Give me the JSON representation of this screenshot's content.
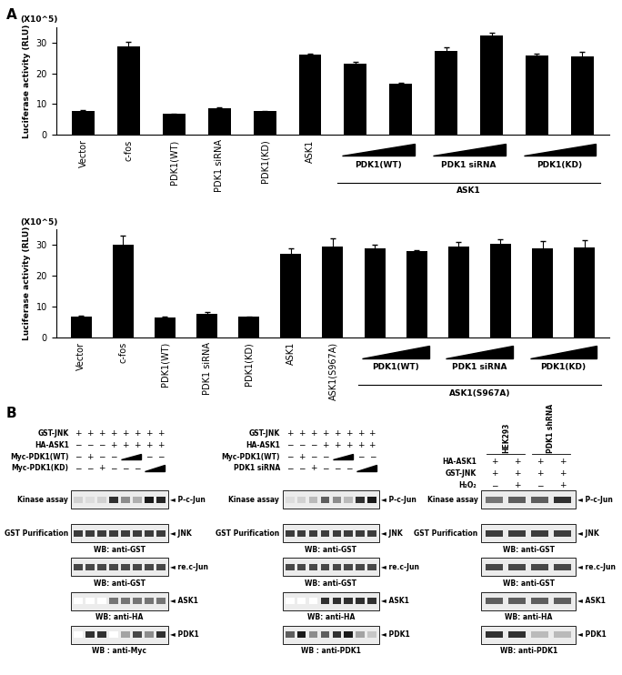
{
  "panel_labels": [
    "A",
    "B"
  ],
  "chart_data": [
    {
      "type": "bar",
      "y_multiplier_label": "(X10^5)",
      "ylabel": "Luciferase activity (RLU)",
      "categories": [
        "Vector",
        "c-fos",
        "PDK1(WT)",
        "PDK1 siRNA",
        "PDK1(KD)",
        "ASK1",
        null,
        null,
        null,
        null,
        null,
        null
      ],
      "values": [
        7.8,
        28.7,
        6.8,
        8.7,
        7.7,
        26.1,
        23.1,
        16.6,
        27.3,
        32.2,
        25.8,
        25.4
      ],
      "errors": [
        0.2,
        1.5,
        0.2,
        0.3,
        0.1,
        0.3,
        0.7,
        0.4,
        1.1,
        1.0,
        0.5,
        1.4
      ],
      "groups": [
        {
          "label": "PDK1(WT)",
          "size": 2
        },
        {
          "label": "PDK1 siRNA",
          "size": 2
        },
        {
          "label": "PDK1(KD)",
          "size": 2
        }
      ],
      "group_label": "ASK1",
      "color": "#000000",
      "ylim": [
        0,
        35
      ],
      "yticks": [
        0,
        10,
        20,
        30
      ]
    },
    {
      "type": "bar",
      "y_multiplier_label": "(X10^5)",
      "ylabel": "Luciferase activity (RLU)",
      "categories": [
        "Vector",
        "c-fos",
        "PDK1(WT)",
        "PDK1 siRNA",
        "PDK1(KD)",
        "ASK1",
        "ASK1(S967A)",
        null,
        null,
        null,
        null,
        null,
        null
      ],
      "values": [
        6.8,
        30.2,
        6.5,
        7.8,
        6.7,
        27.0,
        29.4,
        28.8,
        27.9,
        29.4,
        30.3,
        28.9,
        29.2
      ],
      "errors": [
        0.2,
        2.8,
        0.3,
        0.6,
        0.1,
        1.8,
        2.8,
        1.3,
        0.5,
        1.5,
        1.4,
        2.3,
        2.2
      ],
      "groups": [
        {
          "label": "PDK1(WT)",
          "size": 2
        },
        {
          "label": "PDK1 siRNA",
          "size": 2
        },
        {
          "label": "PDK1(KD)",
          "size": 2
        }
      ],
      "group_label": "ASK1(S967A)",
      "color": "#000000",
      "ylim": [
        0,
        35
      ],
      "yticks": [
        0,
        10,
        20,
        30
      ]
    }
  ],
  "blots": [
    {
      "rows": [
        {
          "label": "GST-JNK",
          "signs": [
            "+",
            "+",
            "+",
            "+",
            "+",
            "+",
            "+",
            "+"
          ]
        },
        {
          "label": "HA-ASK1",
          "signs": [
            "−",
            "−",
            "−",
            "+",
            "+",
            "+",
            "+",
            "+"
          ]
        },
        {
          "label": "Myc-PDK1(WT)",
          "signs": [
            "−",
            "+",
            "−",
            "−",
            null,
            null,
            "−",
            "−"
          ]
        },
        {
          "label": "Myc-PDK1(KD)",
          "signs": [
            "−",
            "−",
            "+",
            "−",
            "−",
            "−",
            null,
            null
          ]
        }
      ],
      "panels": [
        {
          "left_label": "Kinase assay",
          "right_label": "◄ P-c-Jun",
          "intensities": [
            0.2,
            0.15,
            0.2,
            0.9,
            0.5,
            0.35,
            1.0,
            0.95
          ]
        },
        {
          "left_label": "GST Purification",
          "right_label": "◄ JNK",
          "wb_label": "WB: anti-GST",
          "intensities": [
            0.85,
            0.85,
            0.85,
            0.85,
            0.85,
            0.85,
            0.85,
            0.85
          ]
        },
        {
          "right_label": "◄ re.c-Jun",
          "wb_label": "WB: anti-GST",
          "intensities": [
            0.8,
            0.8,
            0.8,
            0.8,
            0.8,
            0.8,
            0.8,
            0.8
          ]
        },
        {
          "right_label": "◄ ASK1",
          "wb_label": "WB: anti-HA",
          "intensities": [
            0,
            0,
            0,
            0.6,
            0.6,
            0.6,
            0.6,
            0.6
          ]
        },
        {
          "right_label": "◄ PDK1",
          "wb_label": "WB : anti-Myc",
          "intensities": [
            0,
            0.9,
            0.9,
            0,
            0.4,
            0.8,
            0.5,
            0.9
          ]
        }
      ]
    },
    {
      "rows": [
        {
          "label": "GST-JNK",
          "signs": [
            "+",
            "+",
            "+",
            "+",
            "+",
            "+",
            "+",
            "+"
          ]
        },
        {
          "label": "HA-ASK1",
          "signs": [
            "−",
            "−",
            "−",
            "+",
            "+",
            "+",
            "+",
            "+"
          ]
        },
        {
          "label": "Myc-PDK1(WT)",
          "signs": [
            "−",
            "+",
            "−",
            "−",
            null,
            null,
            "−",
            "−"
          ]
        },
        {
          "label": "PDK1 siRNA",
          "signs": [
            "−",
            "−",
            "+",
            "−",
            "−",
            "−",
            null,
            null
          ]
        }
      ],
      "panels": [
        {
          "left_label": "Kinase assay",
          "right_label": "◄ P-c-Jun",
          "intensities": [
            0.15,
            0.2,
            0.3,
            0.7,
            0.5,
            0.3,
            0.9,
            1.0
          ]
        },
        {
          "left_label": "GST Purification",
          "right_label": "◄ JNK",
          "wb_label": "WB: anti-GST",
          "intensities": [
            0.85,
            0.85,
            0.85,
            0.85,
            0.85,
            0.85,
            0.85,
            0.85
          ]
        },
        {
          "right_label": "◄ re.c-Jun",
          "wb_label": "WB: anti-GST",
          "intensities": [
            0.8,
            0.8,
            0.8,
            0.8,
            0.8,
            0.8,
            0.8,
            0.8
          ]
        },
        {
          "right_label": "◄ ASK1",
          "wb_label": "WB: anti-HA",
          "intensities": [
            0,
            0,
            0,
            0.9,
            0.9,
            0.9,
            0.9,
            0.9
          ]
        },
        {
          "right_label": "◄ PDK1",
          "wb_label": "WB : anti-PDK1",
          "intensities": [
            0.7,
            1.0,
            0.5,
            0.7,
            0.9,
            1.0,
            0.4,
            0.25
          ]
        }
      ]
    },
    {
      "column_headers": [
        {
          "label": "HEK293",
          "size": 2
        },
        {
          "label": "PDK1 shRNA",
          "size": 2
        }
      ],
      "rows": [
        {
          "label": "HA-ASK1",
          "signs": [
            "+",
            "+",
            "+",
            "+"
          ]
        },
        {
          "label": "GST-JNK",
          "signs": [
            "+",
            "+",
            "+",
            "+"
          ]
        },
        {
          "label": "H₂O₂",
          "signs": [
            "−",
            "+",
            "−",
            "+"
          ]
        }
      ],
      "panels": [
        {
          "left_label": "Kinase assay",
          "right_label": "◄ P-c-Jun",
          "intensities": [
            0.6,
            0.7,
            0.7,
            0.9
          ]
        },
        {
          "left_label": "GST Purification",
          "right_label": "◄ JNK",
          "wb_label": "WB: anti-GST",
          "intensities": [
            0.85,
            0.85,
            0.85,
            0.85
          ]
        },
        {
          "right_label": "◄ re.c-Jun",
          "wb_label": "WB: anti-GST",
          "intensities": [
            0.8,
            0.8,
            0.8,
            0.8
          ]
        },
        {
          "right_label": "◄ ASK1",
          "wb_label": "WB: anti-HA",
          "intensities": [
            0.7,
            0.7,
            0.7,
            0.7
          ]
        },
        {
          "right_label": "◄ PDK1",
          "wb_label": "WB: anti-PDK1",
          "intensities": [
            0.9,
            0.9,
            0.3,
            0.3
          ]
        }
      ]
    }
  ]
}
